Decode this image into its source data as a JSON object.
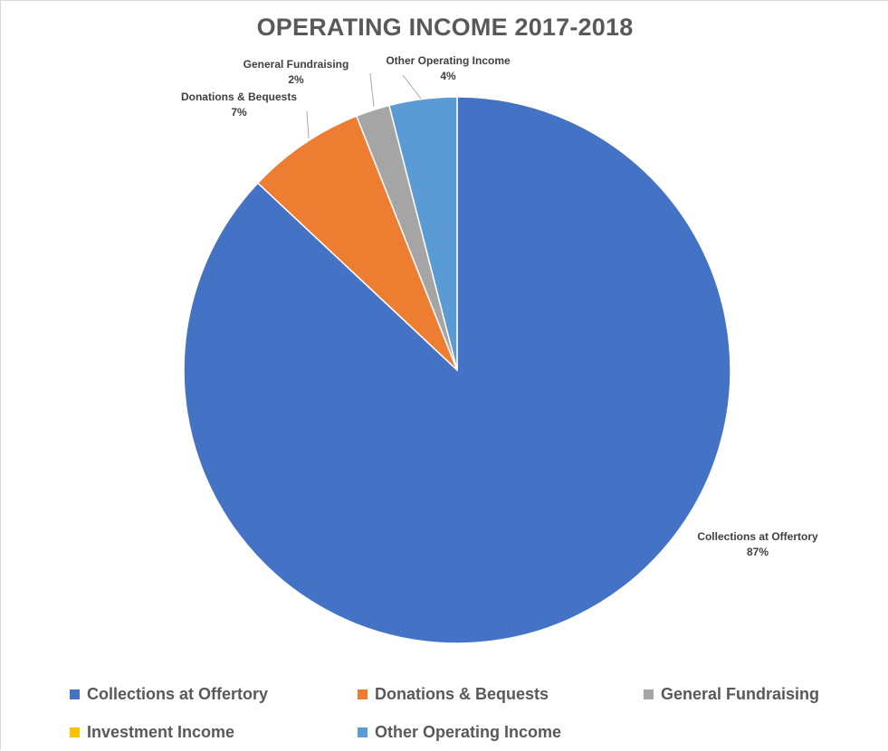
{
  "chart_data": {
    "type": "pie",
    "title": "OPERATING INCOME 2017-2018",
    "slices": [
      {
        "label": "Collections at Offertory",
        "value": 87,
        "percent_label": "87%",
        "color": "#4472c4"
      },
      {
        "label": "Investment Income",
        "value": 0,
        "percent_label": "",
        "color": "#ffc000"
      },
      {
        "label": "Donations & Bequests",
        "value": 7,
        "percent_label": "7%",
        "color": "#ed7d31"
      },
      {
        "label": "General Fundraising",
        "value": 2,
        "percent_label": "2%",
        "color": "#a5a5a5"
      },
      {
        "label": "Other Operating Income",
        "value": 4,
        "percent_label": "4%",
        "color": "#5b9bd5"
      }
    ],
    "legend": {
      "placement": "bottom",
      "items": [
        {
          "label": "Collections at Offertory",
          "color": "#4472c4"
        },
        {
          "label": "Donations & Bequests",
          "color": "#ed7d31"
        },
        {
          "label": "General Fundraising",
          "color": "#a5a5a5"
        },
        {
          "label": "Investment Income",
          "color": "#ffc000"
        },
        {
          "label": "Other Operating Income",
          "color": "#5b9bd5"
        }
      ]
    }
  }
}
